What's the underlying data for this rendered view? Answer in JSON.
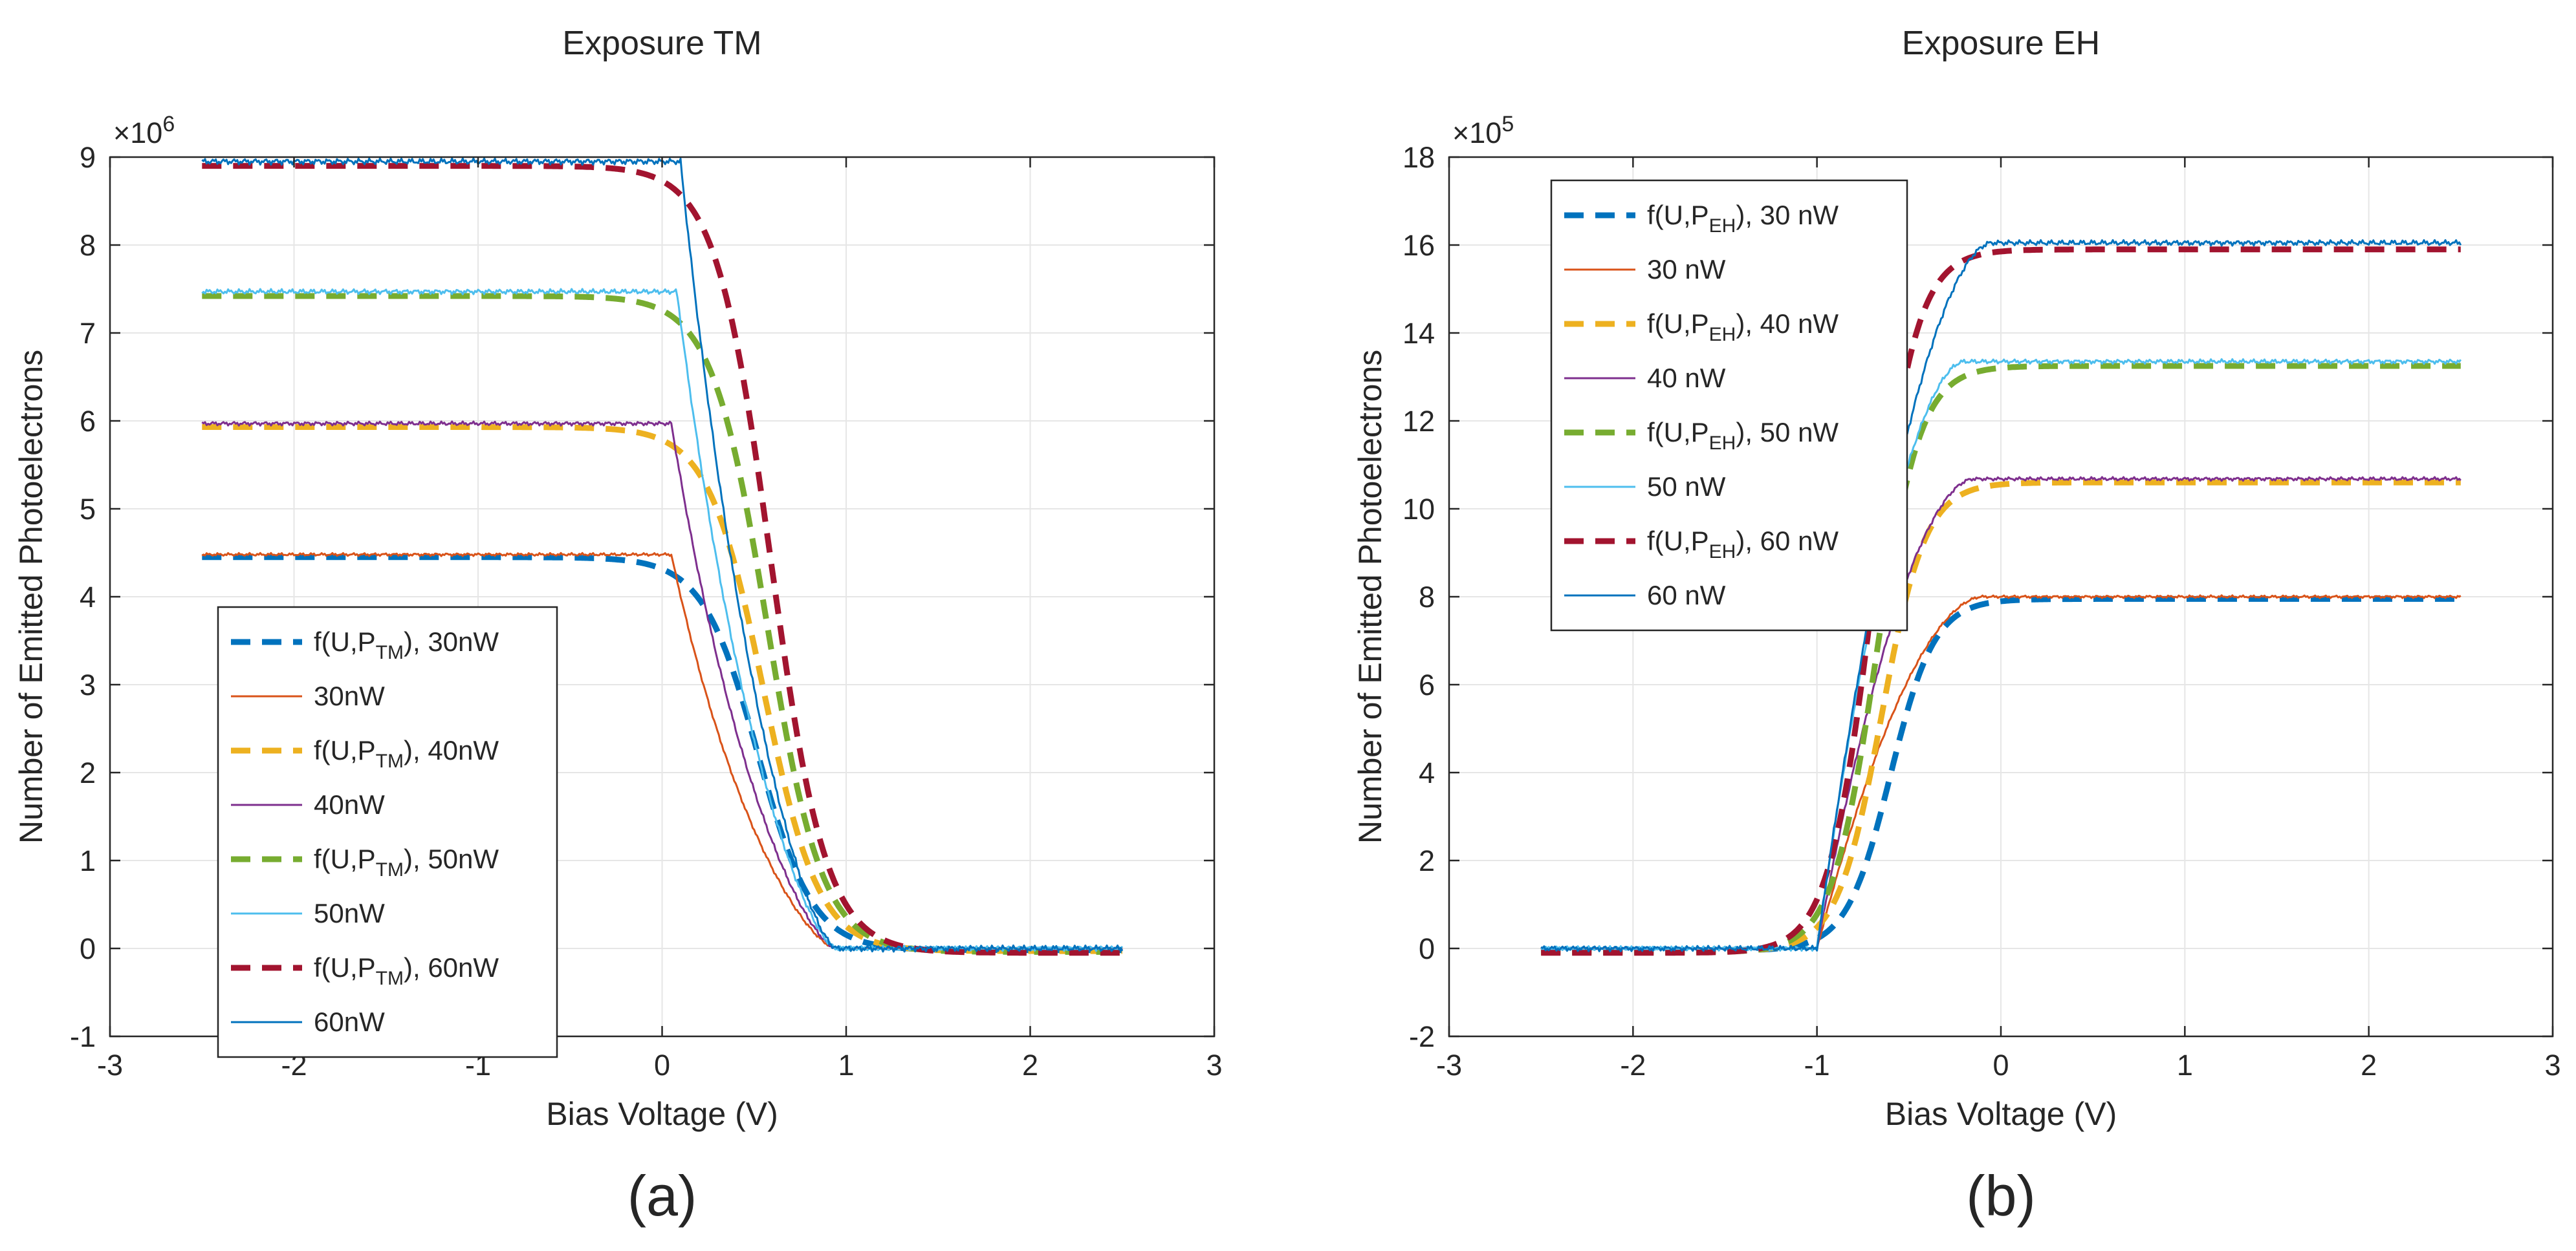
{
  "chart_data": [
    {
      "type": "line",
      "title": "Exposure TM",
      "xlabel": "Bias Voltage (V)",
      "ylabel": "Number of Emitted Photoelectrons",
      "y_exponent": "×10",
      "y_exponent_power": "6",
      "y_scale": 1000000,
      "xlim": [
        -3,
        3
      ],
      "ylim": [
        -1,
        9
      ],
      "xticks": [
        "-3",
        "-2",
        "-1",
        "0",
        "1",
        "2",
        "3"
      ],
      "yticks": [
        "-1",
        "0",
        "1",
        "2",
        "3",
        "4",
        "5",
        "6",
        "7",
        "8",
        "9"
      ],
      "grid": true,
      "legend_position": "lower-left",
      "panel_label": "(a)",
      "direction": "falling",
      "series": [
        {
          "name_base": "f(U,P",
          "name_sub": "TM",
          "name_tail": "), 30nW",
          "style": "dashed",
          "color": "#0072BD",
          "plateau": 4.45,
          "x0": 0.52,
          "width": 0.15,
          "tail": -0.02
        },
        {
          "name_base": "30nW",
          "name_sub": "",
          "name_tail": "",
          "style": "solid",
          "color": "#D95319",
          "plateau": 4.48,
          "knee": 0.05,
          "zero_at": 0.95
        },
        {
          "name_base": "f(U,P",
          "name_sub": "TM",
          "name_tail": "), 40nW",
          "style": "dashed",
          "color": "#EDB120",
          "plateau": 5.93,
          "x0": 0.55,
          "width": 0.15,
          "tail": -0.03
        },
        {
          "name_base": "40nW",
          "name_sub": "",
          "name_tail": "",
          "style": "solid",
          "color": "#7E2F8E",
          "plateau": 5.97,
          "knee": 0.05,
          "zero_at": 0.95
        },
        {
          "name_base": "f(U,P",
          "name_sub": "TM",
          "name_tail": "), 50nW",
          "style": "dashed",
          "color": "#77AC30",
          "plateau": 7.42,
          "x0": 0.57,
          "width": 0.15,
          "tail": -0.04
        },
        {
          "name_base": "50nW",
          "name_sub": "",
          "name_tail": "",
          "style": "solid",
          "color": "#4DBEEE",
          "plateau": 7.47,
          "knee": 0.08,
          "zero_at": 0.95
        },
        {
          "name_base": "f(U,P",
          "name_sub": "TM",
          "name_tail": "), 60nW",
          "style": "dashed",
          "color": "#A2142F",
          "plateau": 8.9,
          "x0": 0.59,
          "width": 0.15,
          "tail": -0.05
        },
        {
          "name_base": "60nW",
          "name_sub": "",
          "name_tail": "",
          "style": "solid",
          "color": "#0072BD",
          "plateau": 8.95,
          "knee": 0.1,
          "zero_at": 0.95
        }
      ]
    },
    {
      "type": "line",
      "title": "Exposure EH",
      "xlabel": "Bias Voltage (V)",
      "ylabel": "Number of Emitted Photoelectrons",
      "y_exponent": "×10",
      "y_exponent_power": "5",
      "y_scale": 100000,
      "xlim": [
        -3,
        3
      ],
      "ylim": [
        -2,
        18
      ],
      "xticks": [
        "-3",
        "-2",
        "-1",
        "0",
        "1",
        "2",
        "3"
      ],
      "yticks": [
        "-2",
        "0",
        "2",
        "4",
        "6",
        "8",
        "10",
        "12",
        "14",
        "16",
        "18"
      ],
      "grid": true,
      "legend_position": "top-left",
      "panel_label": "(b)",
      "direction": "rising",
      "series": [
        {
          "name_base": "f(U,P",
          "name_sub": "EH",
          "name_tail": "), 30 nW",
          "style": "dashed",
          "color": "#0072BD",
          "plateau": 7.95,
          "x0": -0.6,
          "width": 0.12,
          "tail": -0.05
        },
        {
          "name_base": "30 nW",
          "name_sub": "",
          "name_tail": "",
          "style": "solid",
          "color": "#D95319",
          "plateau": 8.0,
          "knee": -0.1,
          "zero_at": -1.0
        },
        {
          "name_base": "f(U,P",
          "name_sub": "EH",
          "name_tail": "), 40 nW",
          "style": "dashed",
          "color": "#EDB120",
          "plateau": 10.6,
          "x0": -0.65,
          "width": 0.12,
          "tail": -0.07
        },
        {
          "name_base": "40 nW",
          "name_sub": "",
          "name_tail": "",
          "style": "solid",
          "color": "#7E2F8E",
          "plateau": 10.68,
          "knee": -0.15,
          "zero_at": -1.0
        },
        {
          "name_base": "f(U,P",
          "name_sub": "EH",
          "name_tail": "), 50 nW",
          "style": "dashed",
          "color": "#77AC30",
          "plateau": 13.25,
          "x0": -0.68,
          "width": 0.12,
          "tail": -0.09
        },
        {
          "name_base": "50 nW",
          "name_sub": "",
          "name_tail": "",
          "style": "solid",
          "color": "#4DBEEE",
          "plateau": 13.35,
          "knee": -0.2,
          "zero_at": -1.0
        },
        {
          "name_base": "f(U,P",
          "name_sub": "EH",
          "name_tail": "), 60 nW",
          "style": "dashed",
          "color": "#A2142F",
          "plateau": 15.9,
          "x0": -0.7,
          "width": 0.12,
          "tail": -0.1
        },
        {
          "name_base": "60 nW",
          "name_sub": "",
          "name_tail": "",
          "style": "solid",
          "color": "#0072BD",
          "plateau": 16.05,
          "knee": -0.05,
          "zero_at": -1.0
        }
      ]
    }
  ]
}
